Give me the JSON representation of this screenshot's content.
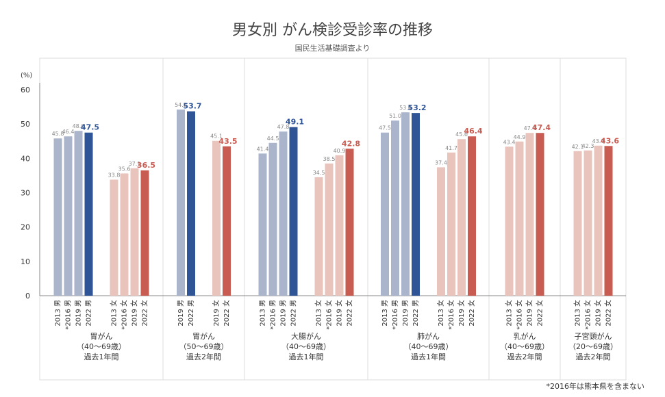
{
  "title": "男女別 がん検診受診率の推移",
  "subtitle": "国民生活基礎調査より",
  "footnote": "*2016年は熊本県を含まない",
  "colors": {
    "male_past": "#aab5cc",
    "male_latest": "#2f5597",
    "female_past": "#e9c4bc",
    "female_latest": "#c95c52",
    "axis": "#888888",
    "grid_separator": "#dddddd"
  },
  "chart_data": {
    "type": "bar",
    "ylabel": "(%)",
    "ylim": [
      0,
      60
    ],
    "yticks": [
      0,
      10,
      20,
      30,
      40,
      50,
      60
    ],
    "grid": false,
    "groups": [
      {
        "label_lines": [
          "胃がん",
          "（40〜69歳）",
          "過去1年間"
        ],
        "bars": [
          {
            "label": "2013 男",
            "value": 45.8,
            "kind": "male_past"
          },
          {
            "label": "*2016 男",
            "value": 46.4,
            "kind": "male_past"
          },
          {
            "label": "2019 男",
            "value": 48.0,
            "kind": "male_past"
          },
          {
            "label": "2022 男",
            "value": 47.5,
            "kind": "male_latest"
          },
          {
            "label": "2013 女",
            "value": 33.8,
            "kind": "female_past"
          },
          {
            "label": "*2016 女",
            "value": 35.6,
            "kind": "female_past"
          },
          {
            "label": "2019 女",
            "value": 37.1,
            "kind": "female_past"
          },
          {
            "label": "2022 女",
            "value": 36.5,
            "kind": "female_latest"
          }
        ]
      },
      {
        "label_lines": [
          "胃がん",
          "（50〜69歳）",
          "過去2年間"
        ],
        "bars": [
          {
            "label": "2019 男",
            "value": 54.2,
            "kind": "male_past"
          },
          {
            "label": "2022 男",
            "value": 53.7,
            "kind": "male_latest"
          },
          {
            "label": "2019 女",
            "value": 45.1,
            "kind": "female_past"
          },
          {
            "label": "2022 女",
            "value": 43.5,
            "kind": "female_latest"
          }
        ]
      },
      {
        "label_lines": [
          "大腸がん",
          "（40〜69歳）",
          "過去1年間"
        ],
        "bars": [
          {
            "label": "2013 男",
            "value": 41.4,
            "kind": "male_past"
          },
          {
            "label": "*2016 男",
            "value": 44.5,
            "kind": "male_past"
          },
          {
            "label": "2019 男",
            "value": 47.8,
            "kind": "male_past"
          },
          {
            "label": "2022 男",
            "value": 49.1,
            "kind": "male_latest"
          },
          {
            "label": "2013 女",
            "value": 34.5,
            "kind": "female_past"
          },
          {
            "label": "*2016 女",
            "value": 38.5,
            "kind": "female_past"
          },
          {
            "label": "2019 女",
            "value": 40.9,
            "kind": "female_past"
          },
          {
            "label": "2022 女",
            "value": 42.8,
            "kind": "female_latest"
          }
        ]
      },
      {
        "label_lines": [
          "肺がん",
          "（40〜69歳）",
          "過去1年間"
        ],
        "bars": [
          {
            "label": "2013 男",
            "value": 47.5,
            "kind": "male_past"
          },
          {
            "label": "*2016 男",
            "value": 51.0,
            "kind": "male_past"
          },
          {
            "label": "2019 男",
            "value": 53.4,
            "kind": "male_past"
          },
          {
            "label": "2022 男",
            "value": 53.2,
            "kind": "male_latest"
          },
          {
            "label": "2013 女",
            "value": 37.4,
            "kind": "female_past"
          },
          {
            "label": "*2016 女",
            "value": 41.7,
            "kind": "female_past"
          },
          {
            "label": "2019 女",
            "value": 45.6,
            "kind": "female_past"
          },
          {
            "label": "2022 女",
            "value": 46.4,
            "kind": "female_latest"
          }
        ]
      },
      {
        "label_lines": [
          "乳がん",
          "（40〜69歳）",
          "過去2年間"
        ],
        "bars": [
          {
            "label": "2013 女",
            "value": 43.4,
            "kind": "female_past"
          },
          {
            "label": "*2016 女",
            "value": 44.9,
            "kind": "female_past"
          },
          {
            "label": "2019 女",
            "value": 47.4,
            "kind": "female_past"
          },
          {
            "label": "2022 女",
            "value": 47.4,
            "kind": "female_latest"
          }
        ]
      },
      {
        "label_lines": [
          "子宮頸がん",
          "（20〜69歳）",
          "過去2年間"
        ],
        "bars": [
          {
            "label": "2013 女",
            "value": 42.1,
            "kind": "female_past"
          },
          {
            "label": "*2016 女",
            "value": 42.3,
            "kind": "female_past"
          },
          {
            "label": "2019 女",
            "value": 43.7,
            "kind": "female_past"
          },
          {
            "label": "2022 女",
            "value": 43.6,
            "kind": "female_latest"
          }
        ]
      }
    ]
  }
}
